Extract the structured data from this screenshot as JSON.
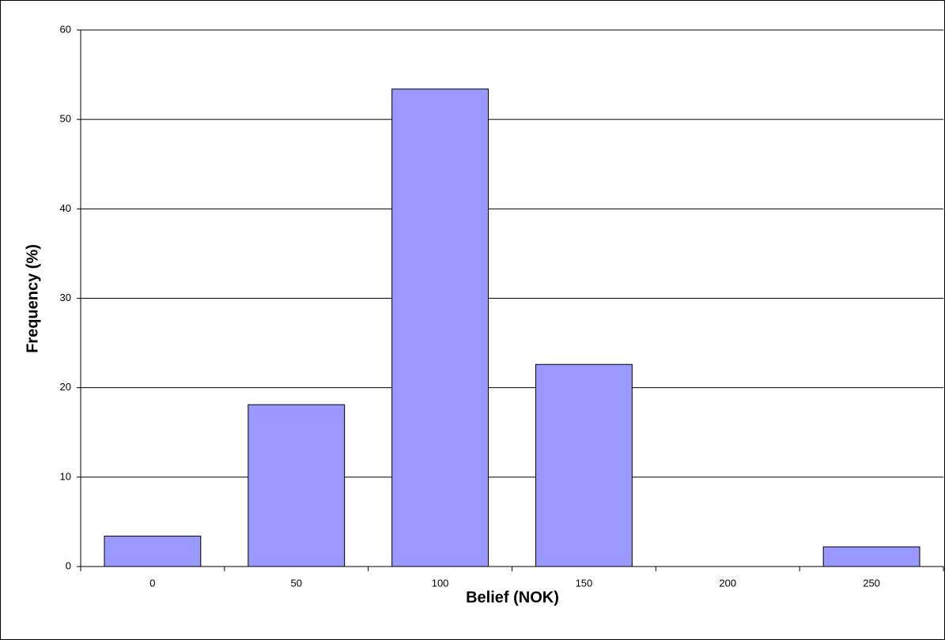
{
  "chart_data": {
    "type": "bar",
    "x_label": "Belief (NOK)",
    "y_label": "Frequency (%)",
    "categories": [
      "0",
      "50",
      "100",
      "150",
      "200",
      "250"
    ],
    "values": [
      3.4,
      18.1,
      53.4,
      22.6,
      0,
      2.2
    ],
    "color": "#9999ff",
    "ylim": [
      0,
      60
    ],
    "yticks": [
      0,
      10,
      20,
      30,
      40,
      50,
      60
    ],
    "grid": true
  }
}
